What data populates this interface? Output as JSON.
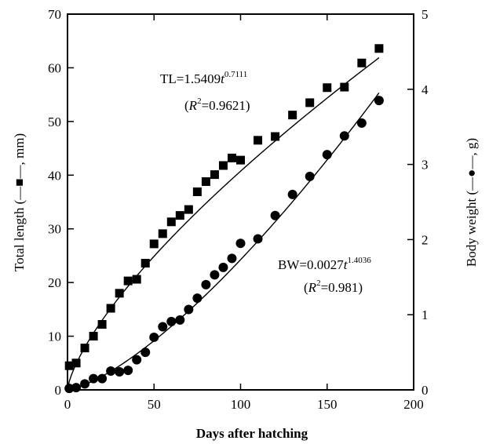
{
  "chart_data": {
    "type": "scatter",
    "xlabel": "Days after hatching",
    "ylabel_left": "Total length (—■—, mm)",
    "ylabel_right": "Body weight (—●—, g)",
    "xlim": [
      0,
      200
    ],
    "ylim_left": [
      0,
      70
    ],
    "ylim_right": [
      0,
      5
    ],
    "x_ticks": [
      0,
      50,
      100,
      150,
      200
    ],
    "y_ticks_left": [
      0,
      10,
      20,
      30,
      40,
      50,
      60,
      70
    ],
    "y_ticks_right": [
      0,
      1,
      2,
      3,
      4,
      5
    ],
    "grid": false,
    "series": [
      {
        "marker": "square",
        "axis": "left",
        "x": [
          1,
          5,
          10,
          15,
          20,
          25,
          30,
          35,
          40,
          45,
          50,
          55,
          60,
          65,
          70,
          75,
          80,
          85,
          90,
          95,
          100,
          110,
          120,
          130,
          140,
          150,
          160,
          170,
          180
        ],
        "values": [
          4.5,
          5.0,
          7.8,
          10.0,
          12.2,
          15.2,
          18.0,
          20.3,
          20.6,
          23.6,
          27.2,
          29.1,
          31.3,
          32.5,
          33.6,
          36.9,
          38.8,
          40.1,
          41.8,
          43.2,
          42.8,
          46.5,
          47.2,
          51.2,
          53.5,
          56.3,
          56.4,
          60.9,
          63.6
        ]
      },
      {
        "marker": "circle",
        "axis": "right",
        "x": [
          1,
          5,
          10,
          15,
          20,
          25,
          30,
          35,
          40,
          45,
          50,
          55,
          60,
          65,
          70,
          75,
          80,
          85,
          90,
          95,
          100,
          110,
          120,
          130,
          140,
          150,
          160,
          170,
          180
        ],
        "values": [
          0.02,
          0.03,
          0.08,
          0.15,
          0.15,
          0.25,
          0.24,
          0.26,
          0.4,
          0.5,
          0.7,
          0.84,
          0.91,
          0.93,
          1.07,
          1.22,
          1.4,
          1.53,
          1.63,
          1.75,
          1.95,
          2.01,
          2.32,
          2.6,
          2.84,
          3.13,
          3.38,
          3.55,
          3.85
        ]
      }
    ],
    "fits": [
      {
        "axis": "left",
        "coef": 1.5409,
        "exponent": 0.7111,
        "prefix": "TL=1.5409",
        "var": "t",
        "exp_text": "0.7111",
        "r2_open": "(",
        "r2_var": "R",
        "r2_sup": "2",
        "r2_value": "=0.9621)"
      },
      {
        "axis": "right",
        "coef": 0.0027,
        "exponent": 1.4036,
        "prefix": "BW=0.0027",
        "var": "t",
        "exp_text": "1.4036",
        "r2_open": "(",
        "r2_var": "R",
        "r2_sup": "2",
        "r2_value": "=0.981)"
      }
    ]
  }
}
